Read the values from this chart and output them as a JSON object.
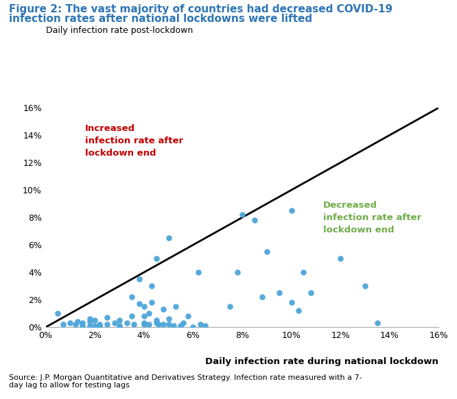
{
  "title_line1": "Figure 2: The vast majority of countries had decreased COVID-19",
  "title_line2": "infection rates after national lockdowns were lifted",
  "ylabel": "Daily infection rate post-lockdown",
  "xlabel": "Daily infection rate during national lockdown",
  "source": "Source: J.P. Morgan Quantitative and Derivatives Strategy. Infection rate measured with a 7-\nday lag to allow for testing lags",
  "title_color": "#2E75B6",
  "dot_color": "#4da6d9",
  "line_color": "#000000",
  "red_label": "Increased\ninfection rate after\nlockdown end",
  "green_label": "Decreased\ninfection rate after\nlockdown end",
  "red_color": "#c00000",
  "green_color": "#70ad47",
  "xlim": [
    0,
    0.16
  ],
  "ylim": [
    0,
    0.16
  ],
  "xticks": [
    0,
    0.02,
    0.04,
    0.06,
    0.08,
    0.1,
    0.12,
    0.14,
    0.16
  ],
  "yticks": [
    0,
    0.02,
    0.04,
    0.06,
    0.08,
    0.1,
    0.12,
    0.14,
    0.16
  ],
  "scatter_x": [
    0.005,
    0.007,
    0.01,
    0.012,
    0.013,
    0.015,
    0.015,
    0.018,
    0.018,
    0.018,
    0.02,
    0.02,
    0.022,
    0.022,
    0.025,
    0.025,
    0.028,
    0.03,
    0.03,
    0.03,
    0.033,
    0.035,
    0.035,
    0.036,
    0.038,
    0.038,
    0.04,
    0.04,
    0.04,
    0.04,
    0.042,
    0.042,
    0.043,
    0.043,
    0.045,
    0.045,
    0.045,
    0.046,
    0.048,
    0.048,
    0.05,
    0.05,
    0.05,
    0.052,
    0.053,
    0.055,
    0.056,
    0.058,
    0.06,
    0.062,
    0.063,
    0.065,
    0.075,
    0.078,
    0.08,
    0.085,
    0.088,
    0.09,
    0.095,
    0.1,
    0.1,
    0.103,
    0.105,
    0.108,
    0.12,
    0.13,
    0.135
  ],
  "scatter_y": [
    0.01,
    0.002,
    0.003,
    0.002,
    0.004,
    0.001,
    0.003,
    0.001,
    0.004,
    0.006,
    0.001,
    0.005,
    0.001,
    0.002,
    0.007,
    0.002,
    0.003,
    0.0,
    0.001,
    0.005,
    0.003,
    0.008,
    0.022,
    0.002,
    0.017,
    0.035,
    0.002,
    0.003,
    0.008,
    0.015,
    0.01,
    0.002,
    0.018,
    0.03,
    0.003,
    0.005,
    0.05,
    0.002,
    0.013,
    0.002,
    0.002,
    0.006,
    0.065,
    0.001,
    0.015,
    0.001,
    0.003,
    0.008,
    0.0,
    0.04,
    0.002,
    0.001,
    0.015,
    0.04,
    0.082,
    0.078,
    0.022,
    0.055,
    0.025,
    0.018,
    0.085,
    0.012,
    0.04,
    0.025,
    0.05,
    0.03,
    0.003
  ]
}
